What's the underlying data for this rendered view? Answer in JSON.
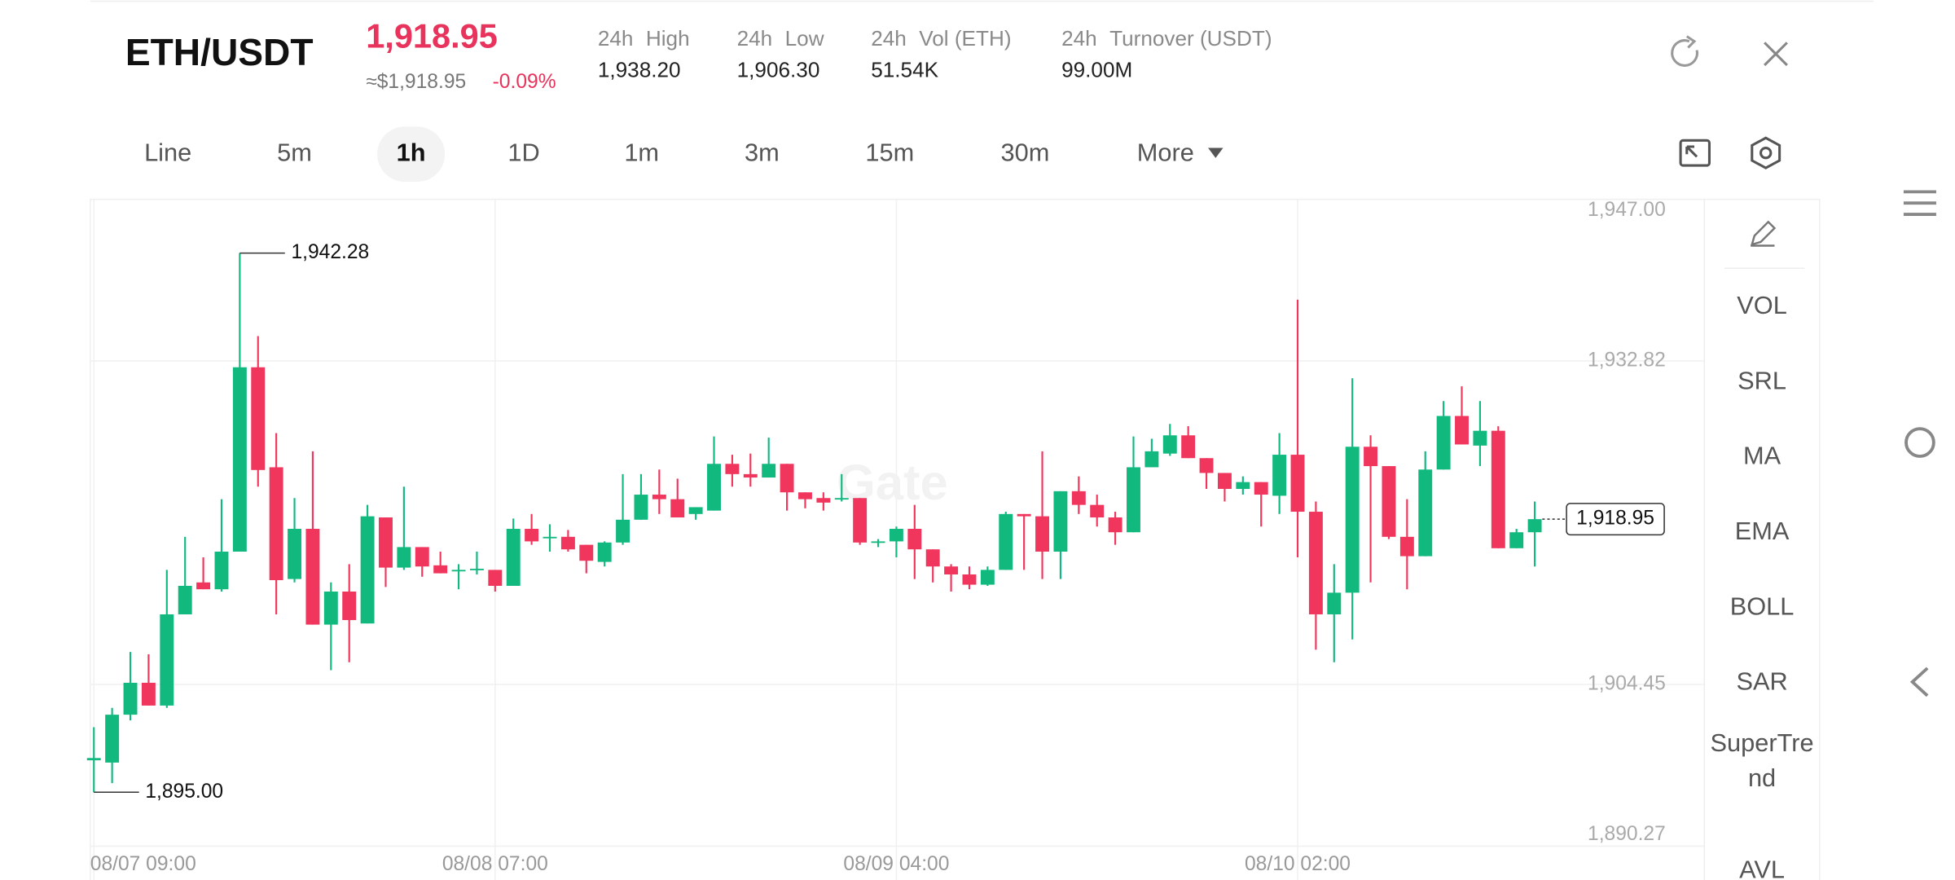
{
  "header": {
    "pair": "ETH/USDT",
    "price": "1,918.95",
    "fiat_price": "≈$1,918.95",
    "change": "-0.09%",
    "stats": [
      {
        "period": "24h",
        "label": "High",
        "value": "1,938.20"
      },
      {
        "period": "24h",
        "label": "Low",
        "value": "1,906.30"
      },
      {
        "period": "24h",
        "label": "Vol (ETH)",
        "value": "51.54K"
      },
      {
        "period": "24h",
        "label": "Turnover (USDT)",
        "value": "99.00M"
      }
    ]
  },
  "tabs": {
    "items": [
      "Line",
      "5m",
      "1h",
      "1D",
      "1m",
      "3m",
      "15m",
      "30m",
      "More"
    ],
    "active": 2
  },
  "indicators": [
    "VOL",
    "SRL",
    "MA",
    "EMA",
    "BOLL",
    "SAR",
    "SuperTrend",
    "AVL"
  ],
  "chart_data": {
    "type": "candlestick",
    "watermark": "Gate",
    "up_color": "#12b97f",
    "down_color": "#f0365d",
    "open": [
      1897.8,
      1897.6,
      1901.8,
      1904.6,
      1902.6,
      1910.6,
      1913.4,
      1912.8,
      1916.1,
      1932.27,
      1923.5,
      1913.7,
      1918.1,
      1909.7,
      1912.6,
      1909.8,
      1919.1,
      1914.7,
      1916.5,
      1914.9,
      1914.4,
      1914.5,
      1914.5,
      1913.1,
      1918.1,
      1917.3,
      1917.4,
      1916.7,
      1915.2,
      1916.9,
      1918.9,
      1921.1,
      1920.7,
      1919.4,
      1919.7,
      1923.8,
      1922.9,
      1922.6,
      1923.8,
      1921.3,
      1920.8,
      1920.7,
      1920.8,
      1916.9,
      1917.0,
      1918.1,
      1916.3,
      1914.8,
      1914.1,
      1913.2,
      1914.5,
      1919.4,
      1919.2,
      1916.1,
      1921.4,
      1920.2,
      1919.1,
      1917.8,
      1923.5,
      1924.7,
      1926.3,
      1924.3,
      1923.0,
      1921.6,
      1922.2,
      1921.0,
      1924.6,
      1919.6,
      1910.6,
      1912.5,
      1925.3,
      1923.6,
      1917.4,
      1915.7,
      1923.3,
      1928.0,
      1925.4,
      1926.7,
      1916.4,
      1917.8
    ],
    "high": [
      1900.7,
      1902.4,
      1907.3,
      1907.1,
      1914.5,
      1917.4,
      1915.6,
      1920.7,
      1942.28,
      1935.0,
      1926.5,
      1920.8,
      1924.9,
      1913.4,
      1915.0,
      1920.2,
      1919.1,
      1921.8,
      1916.5,
      1916.1,
      1915.0,
      1916.1,
      1914.5,
      1919.0,
      1919.4,
      1918.5,
      1918.0,
      1916.7,
      1917.0,
      1922.9,
      1922.9,
      1923.3,
      1922.5,
      1920.0,
      1926.2,
      1924.6,
      1924.7,
      1926.1,
      1923.8,
      1921.3,
      1921.3,
      1922.9,
      1920.8,
      1917.2,
      1918.3,
      1920.2,
      1916.3,
      1915.0,
      1914.8,
      1914.8,
      1919.6,
      1919.4,
      1924.9,
      1921.4,
      1922.7,
      1921.1,
      1919.6,
      1926.2,
      1926.0,
      1927.3,
      1927.1,
      1924.3,
      1923.0,
      1922.7,
      1922.2,
      1926.5,
      1938.2,
      1920.5,
      1915.0,
      1931.3,
      1926.3,
      1923.6,
      1920.7,
      1924.9,
      1929.3,
      1930.6,
      1929.3,
      1927.1,
      1918.1,
      1920.5
    ],
    "low": [
      1895.0,
      1895.8,
      1901.3,
      1902.6,
      1902.4,
      1910.6,
      1912.8,
      1912.6,
      1916.1,
      1921.8,
      1910.6,
      1913.4,
      1909.7,
      1905.7,
      1906.4,
      1909.8,
      1913.0,
      1914.5,
      1913.9,
      1914.2,
      1912.8,
      1914.1,
      1912.6,
      1913.1,
      1916.7,
      1916.1,
      1916.1,
      1914.2,
      1914.8,
      1916.7,
      1918.9,
      1919.4,
      1919.1,
      1918.9,
      1919.7,
      1921.8,
      1921.8,
      1922.6,
      1919.7,
      1919.9,
      1919.7,
      1920.5,
      1916.7,
      1916.5,
      1915.6,
      1913.7,
      1913.4,
      1912.6,
      1912.8,
      1913.1,
      1914.5,
      1914.5,
      1913.7,
      1913.7,
      1919.4,
      1918.3,
      1916.7,
      1917.8,
      1923.5,
      1924.5,
      1924.3,
      1921.6,
      1920.5,
      1921.1,
      1918.3,
      1919.4,
      1915.6,
      1907.5,
      1906.4,
      1908.4,
      1913.4,
      1917.2,
      1912.8,
      1915.7,
      1923.3,
      1925.5,
      1923.6,
      1916.4,
      1916.4,
      1914.8
    ],
    "close": [
      1898.0,
      1901.8,
      1904.6,
      1902.6,
      1910.6,
      1913.1,
      1912.8,
      1916.1,
      1932.27,
      1923.26,
      1913.6,
      1918.1,
      1909.7,
      1912.6,
      1910.1,
      1919.2,
      1914.7,
      1916.5,
      1914.8,
      1914.2,
      1914.5,
      1914.6,
      1913.1,
      1918.1,
      1917.0,
      1917.4,
      1916.3,
      1915.3,
      1916.9,
      1918.9,
      1921.1,
      1920.7,
      1919.1,
      1920.0,
      1923.8,
      1922.9,
      1922.6,
      1923.8,
      1921.3,
      1920.7,
      1920.4,
      1920.8,
      1916.9,
      1917.0,
      1918.1,
      1916.3,
      1914.8,
      1914.1,
      1913.2,
      1914.5,
      1919.4,
      1919.2,
      1916.1,
      1921.4,
      1920.2,
      1919.1,
      1917.8,
      1923.5,
      1924.9,
      1926.3,
      1924.3,
      1923.0,
      1921.6,
      1922.2,
      1921.1,
      1924.6,
      1919.6,
      1910.6,
      1912.5,
      1925.3,
      1923.6,
      1917.4,
      1915.7,
      1923.3,
      1928.0,
      1925.5,
      1926.7,
      1916.4,
      1917.8,
      1918.95
    ],
    "ylim": [
      1890.27,
      1947.0
    ],
    "yticks": [
      {
        "value": 1947.0,
        "label": "1,947.00"
      },
      {
        "value": 1932.82,
        "label": "1,932.82"
      },
      {
        "value": 1904.45,
        "label": "1,904.45"
      },
      {
        "value": 1890.27,
        "label": "1,890.27"
      }
    ],
    "xlim": [
      -0.2,
      88.3
    ],
    "xticks": [
      {
        "value": 0,
        "label": "08/07 09:00"
      },
      {
        "value": 22,
        "label": "08/08 07:00"
      },
      {
        "value": 44,
        "label": "08/09 04:00"
      },
      {
        "value": 66,
        "label": "08/10 02:00"
      }
    ],
    "grid": true,
    "annotations": [
      {
        "value": 1942.28,
        "label": "1,942.28"
      },
      {
        "value": 1895.0,
        "label": "1,895.00"
      },
      {
        "value": 1918.95,
        "label": "1,918.95"
      }
    ]
  }
}
